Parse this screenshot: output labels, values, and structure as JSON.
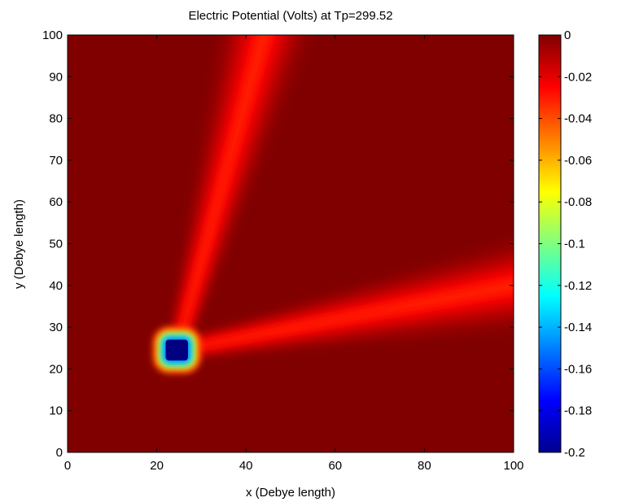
{
  "chart_data": {
    "type": "heatmap",
    "title": "Electric Potential (Volts) at Tp=299.52",
    "xlabel": "x (Debye length)",
    "ylabel": "y (Debye length)",
    "xlim": [
      0,
      100
    ],
    "ylim": [
      0,
      100
    ],
    "x_ticks": [
      0,
      20,
      40,
      60,
      80,
      100
    ],
    "y_ticks": [
      0,
      10,
      20,
      30,
      40,
      50,
      60,
      70,
      80,
      90,
      100
    ],
    "colorbar": {
      "colormap": "jet",
      "range": [
        -0.2,
        0
      ],
      "ticks": [
        0,
        -0.02,
        -0.04,
        -0.06,
        -0.08,
        -0.1,
        -0.12,
        -0.14,
        -0.16,
        -0.18,
        -0.2
      ],
      "tick_labels": [
        "0",
        "-0.02",
        "-0.04",
        "-0.06",
        "-0.08",
        "-0.1",
        "-0.12",
        "-0.14",
        "-0.16",
        "-0.18",
        "-0.2"
      ]
    },
    "background_value": 0,
    "object": {
      "x_range": [
        22,
        27
      ],
      "y_range": [
        22,
        27
      ],
      "value": -0.2
    },
    "wakes": [
      {
        "from": [
          24.5,
          24.5
        ],
        "to": [
          44,
          100
        ],
        "peak_value": -0.03
      },
      {
        "from": [
          24.5,
          24.5
        ],
        "to": [
          100,
          40
        ],
        "peak_value": -0.03
      }
    ],
    "grid": false
  }
}
